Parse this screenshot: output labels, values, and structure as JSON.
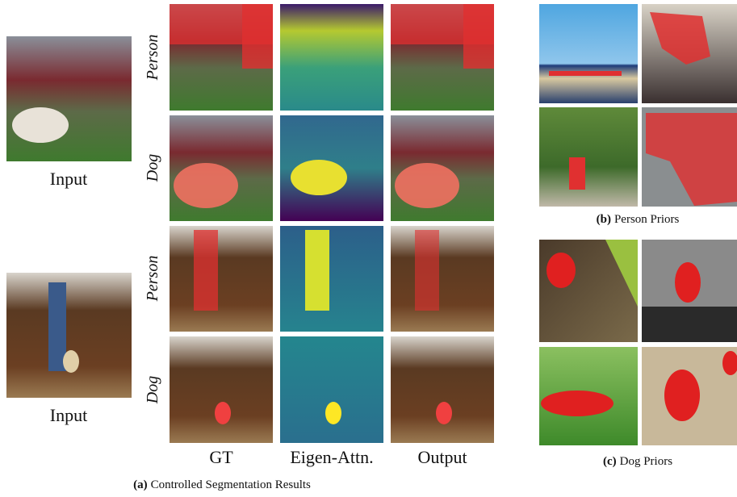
{
  "panel_a": {
    "caption_label": "(a)",
    "caption_text": "Controlled Segmentation Results",
    "columns": [
      "GT",
      "Eigen-Attn.",
      "Output"
    ],
    "examples": [
      {
        "input_label": "Input",
        "rows": [
          "Person",
          "Dog"
        ]
      },
      {
        "input_label": "Input",
        "rows": [
          "Person",
          "Dog"
        ]
      }
    ]
  },
  "panel_b": {
    "caption_label": "(b)",
    "caption_text": "Person Priors"
  },
  "panel_c": {
    "caption_label": "(c)",
    "caption_text": "Dog Priors"
  }
}
